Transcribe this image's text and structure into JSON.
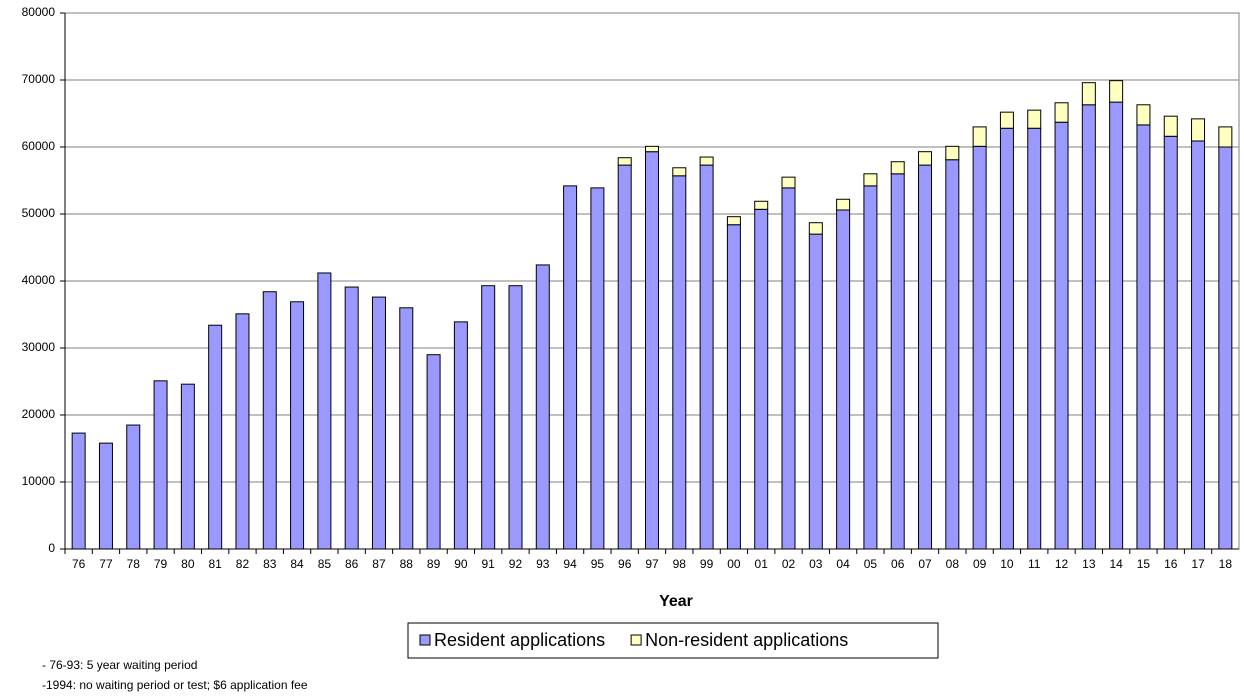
{
  "chart_data": {
    "type": "stacked-bar",
    "categories": [
      "76",
      "77",
      "78",
      "79",
      "80",
      "81",
      "82",
      "83",
      "84",
      "85",
      "86",
      "87",
      "88",
      "89",
      "90",
      "91",
      "92",
      "93",
      "94",
      "95",
      "96",
      "97",
      "98",
      "99",
      "00",
      "01",
      "02",
      "03",
      "04",
      "05",
      "06",
      "07",
      "08",
      "09",
      "10",
      "11",
      "12",
      "13",
      "14",
      "15",
      "16",
      "17",
      "18"
    ],
    "series": [
      {
        "name": "Resident applications",
        "color": "#9999ff",
        "values": [
          17300,
          15800,
          18500,
          25100,
          24600,
          33400,
          35100,
          38400,
          36900,
          41200,
          39100,
          37600,
          36000,
          29000,
          33900,
          39300,
          39300,
          42400,
          54200,
          53900,
          57300,
          59300,
          55700,
          57300,
          48400,
          50700,
          53900,
          47000,
          50600,
          54200,
          56000,
          57300,
          58100,
          60100,
          62800,
          62800,
          63700,
          66300,
          66700,
          63300,
          61600,
          60900,
          60000
        ]
      },
      {
        "name": "Non-resident applications",
        "color": "#ffffc0",
        "values": [
          0,
          0,
          0,
          0,
          0,
          0,
          0,
          0,
          0,
          0,
          0,
          0,
          0,
          0,
          0,
          0,
          0,
          0,
          0,
          0,
          1100,
          800,
          1200,
          1200,
          1200,
          1200,
          1600,
          1700,
          1600,
          1800,
          1800,
          2000,
          2000,
          2900,
          2400,
          2700,
          2900,
          3300,
          3200,
          3000,
          3000,
          3300,
          3000
        ]
      }
    ],
    "xlabel": "Year",
    "ylim": [
      0,
      80000
    ],
    "yticks": [
      0,
      10000,
      20000,
      30000,
      40000,
      50000,
      60000,
      70000,
      80000
    ],
    "grid": true,
    "notes": [
      "- 76-93: 5 year waiting period",
      "-1994: no waiting period or test; $6 application fee"
    ]
  }
}
